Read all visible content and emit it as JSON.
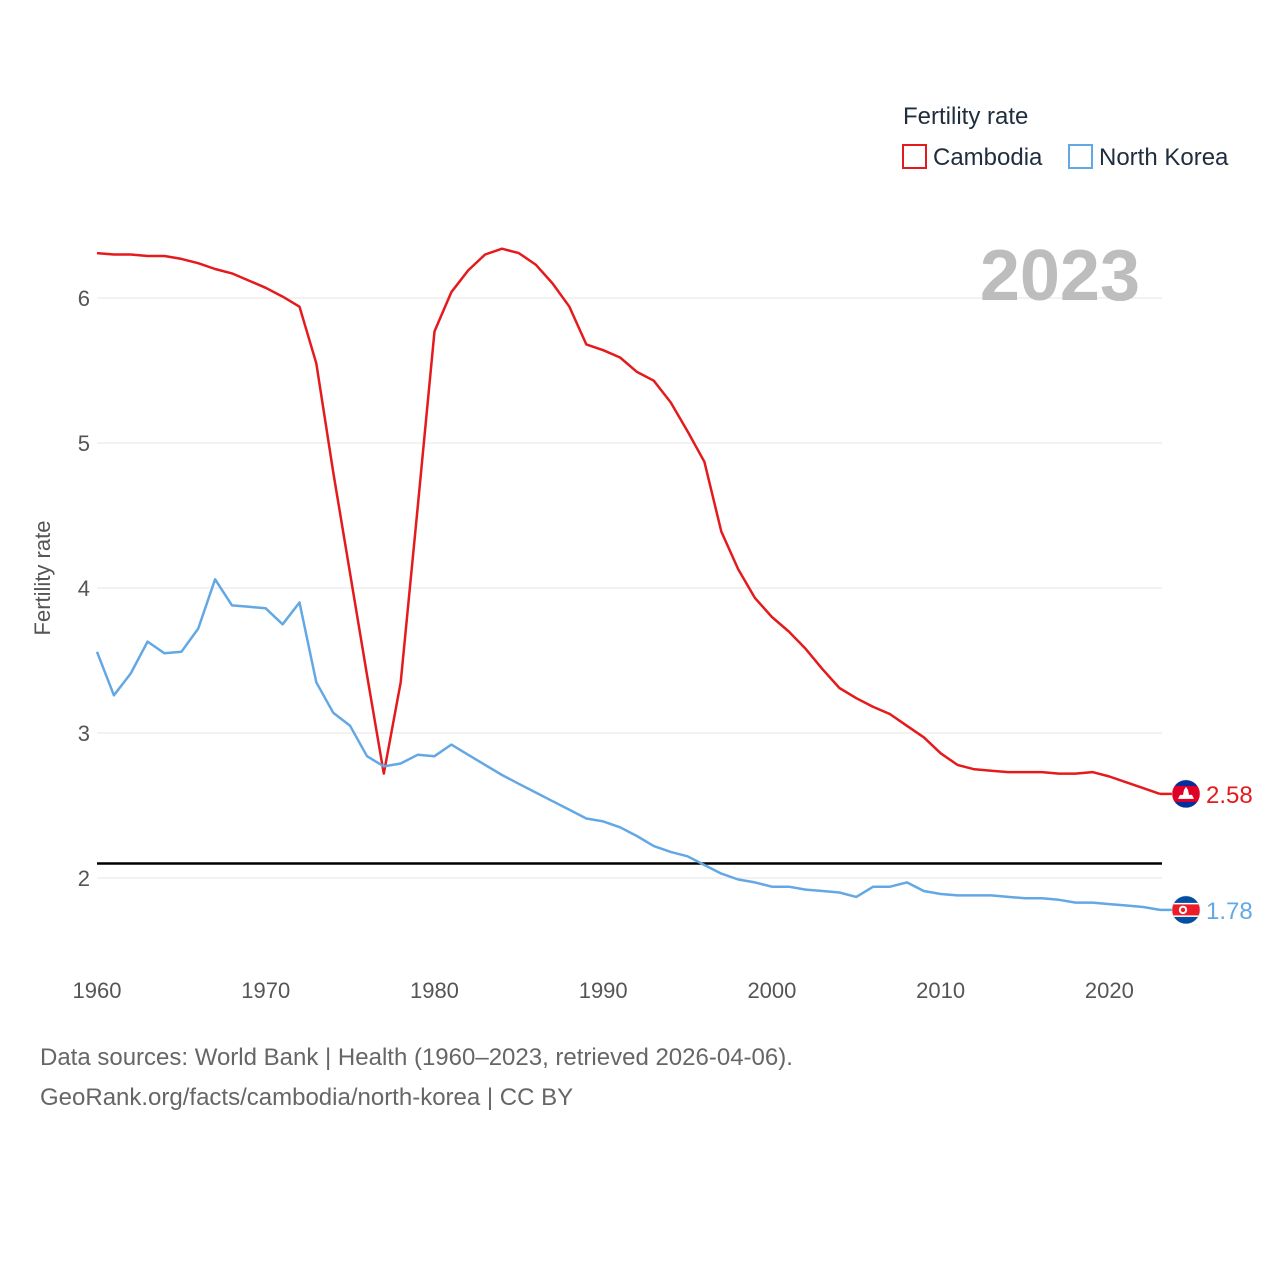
{
  "chart_data": {
    "type": "line",
    "legend_title": "Fertility rate",
    "ylabel": "Fertility rate",
    "xlabel": "",
    "year_label": "2023",
    "xlim": [
      1960,
      2023
    ],
    "ylim": [
      1.5,
      6.8
    ],
    "x_ticks": [
      1960,
      1970,
      1980,
      1990,
      2000,
      2010,
      2020
    ],
    "y_ticks": [
      2,
      3,
      4,
      5,
      6
    ],
    "reference_line": 2.1,
    "grid": true,
    "legend_position": "top-right",
    "x": [
      1960,
      1961,
      1962,
      1963,
      1964,
      1965,
      1966,
      1967,
      1968,
      1969,
      1970,
      1971,
      1972,
      1973,
      1974,
      1975,
      1976,
      1977,
      1978,
      1979,
      1980,
      1981,
      1982,
      1983,
      1984,
      1985,
      1986,
      1987,
      1988,
      1989,
      1990,
      1991,
      1992,
      1993,
      1994,
      1995,
      1996,
      1997,
      1998,
      1999,
      2000,
      2001,
      2002,
      2003,
      2004,
      2005,
      2006,
      2007,
      2008,
      2009,
      2010,
      2011,
      2012,
      2013,
      2014,
      2015,
      2016,
      2017,
      2018,
      2019,
      2020,
      2021,
      2022,
      2023
    ],
    "series": [
      {
        "name": "Cambodia",
        "color": "#e41a1c",
        "end_label": "2.58",
        "flag": "cambodia-flag",
        "values": [
          6.31,
          6.3,
          6.3,
          6.29,
          6.29,
          6.27,
          6.24,
          6.2,
          6.17,
          6.12,
          6.07,
          6.01,
          5.94,
          5.55,
          4.8,
          4.1,
          3.4,
          2.72,
          3.35,
          4.55,
          5.77,
          6.04,
          6.19,
          6.3,
          6.34,
          6.31,
          6.23,
          6.1,
          5.94,
          5.68,
          5.64,
          5.59,
          5.49,
          5.43,
          5.28,
          5.08,
          4.87,
          4.39,
          4.13,
          3.93,
          3.8,
          3.7,
          3.58,
          3.44,
          3.31,
          3.24,
          3.18,
          3.13,
          3.05,
          2.97,
          2.86,
          2.78,
          2.75,
          2.74,
          2.73,
          2.73,
          2.73,
          2.72,
          2.72,
          2.73,
          2.7,
          2.66,
          2.62,
          2.58
        ]
      },
      {
        "name": "North Korea",
        "color": "#63a8e4",
        "end_label": "1.78",
        "flag": "north-korea-flag",
        "values": [
          3.56,
          3.26,
          3.41,
          3.63,
          3.55,
          3.56,
          3.72,
          4.06,
          3.88,
          3.87,
          3.86,
          3.75,
          3.9,
          3.35,
          3.14,
          3.05,
          2.84,
          2.77,
          2.79,
          2.85,
          2.84,
          2.92,
          2.85,
          2.78,
          2.71,
          2.65,
          2.59,
          2.53,
          2.47,
          2.41,
          2.39,
          2.35,
          2.29,
          2.22,
          2.18,
          2.15,
          2.09,
          2.03,
          1.99,
          1.97,
          1.94,
          1.94,
          1.92,
          1.91,
          1.9,
          1.87,
          1.94,
          1.94,
          1.97,
          1.91,
          1.89,
          1.88,
          1.88,
          1.88,
          1.87,
          1.86,
          1.86,
          1.85,
          1.83,
          1.83,
          1.82,
          1.81,
          1.8,
          1.78
        ]
      }
    ]
  },
  "footer": {
    "source_line": "Data sources: World Bank | Health (1960–2023, retrieved 2026-04-06).",
    "credit_line": "GeoRank.org/facts/cambodia/north-korea | CC BY"
  }
}
